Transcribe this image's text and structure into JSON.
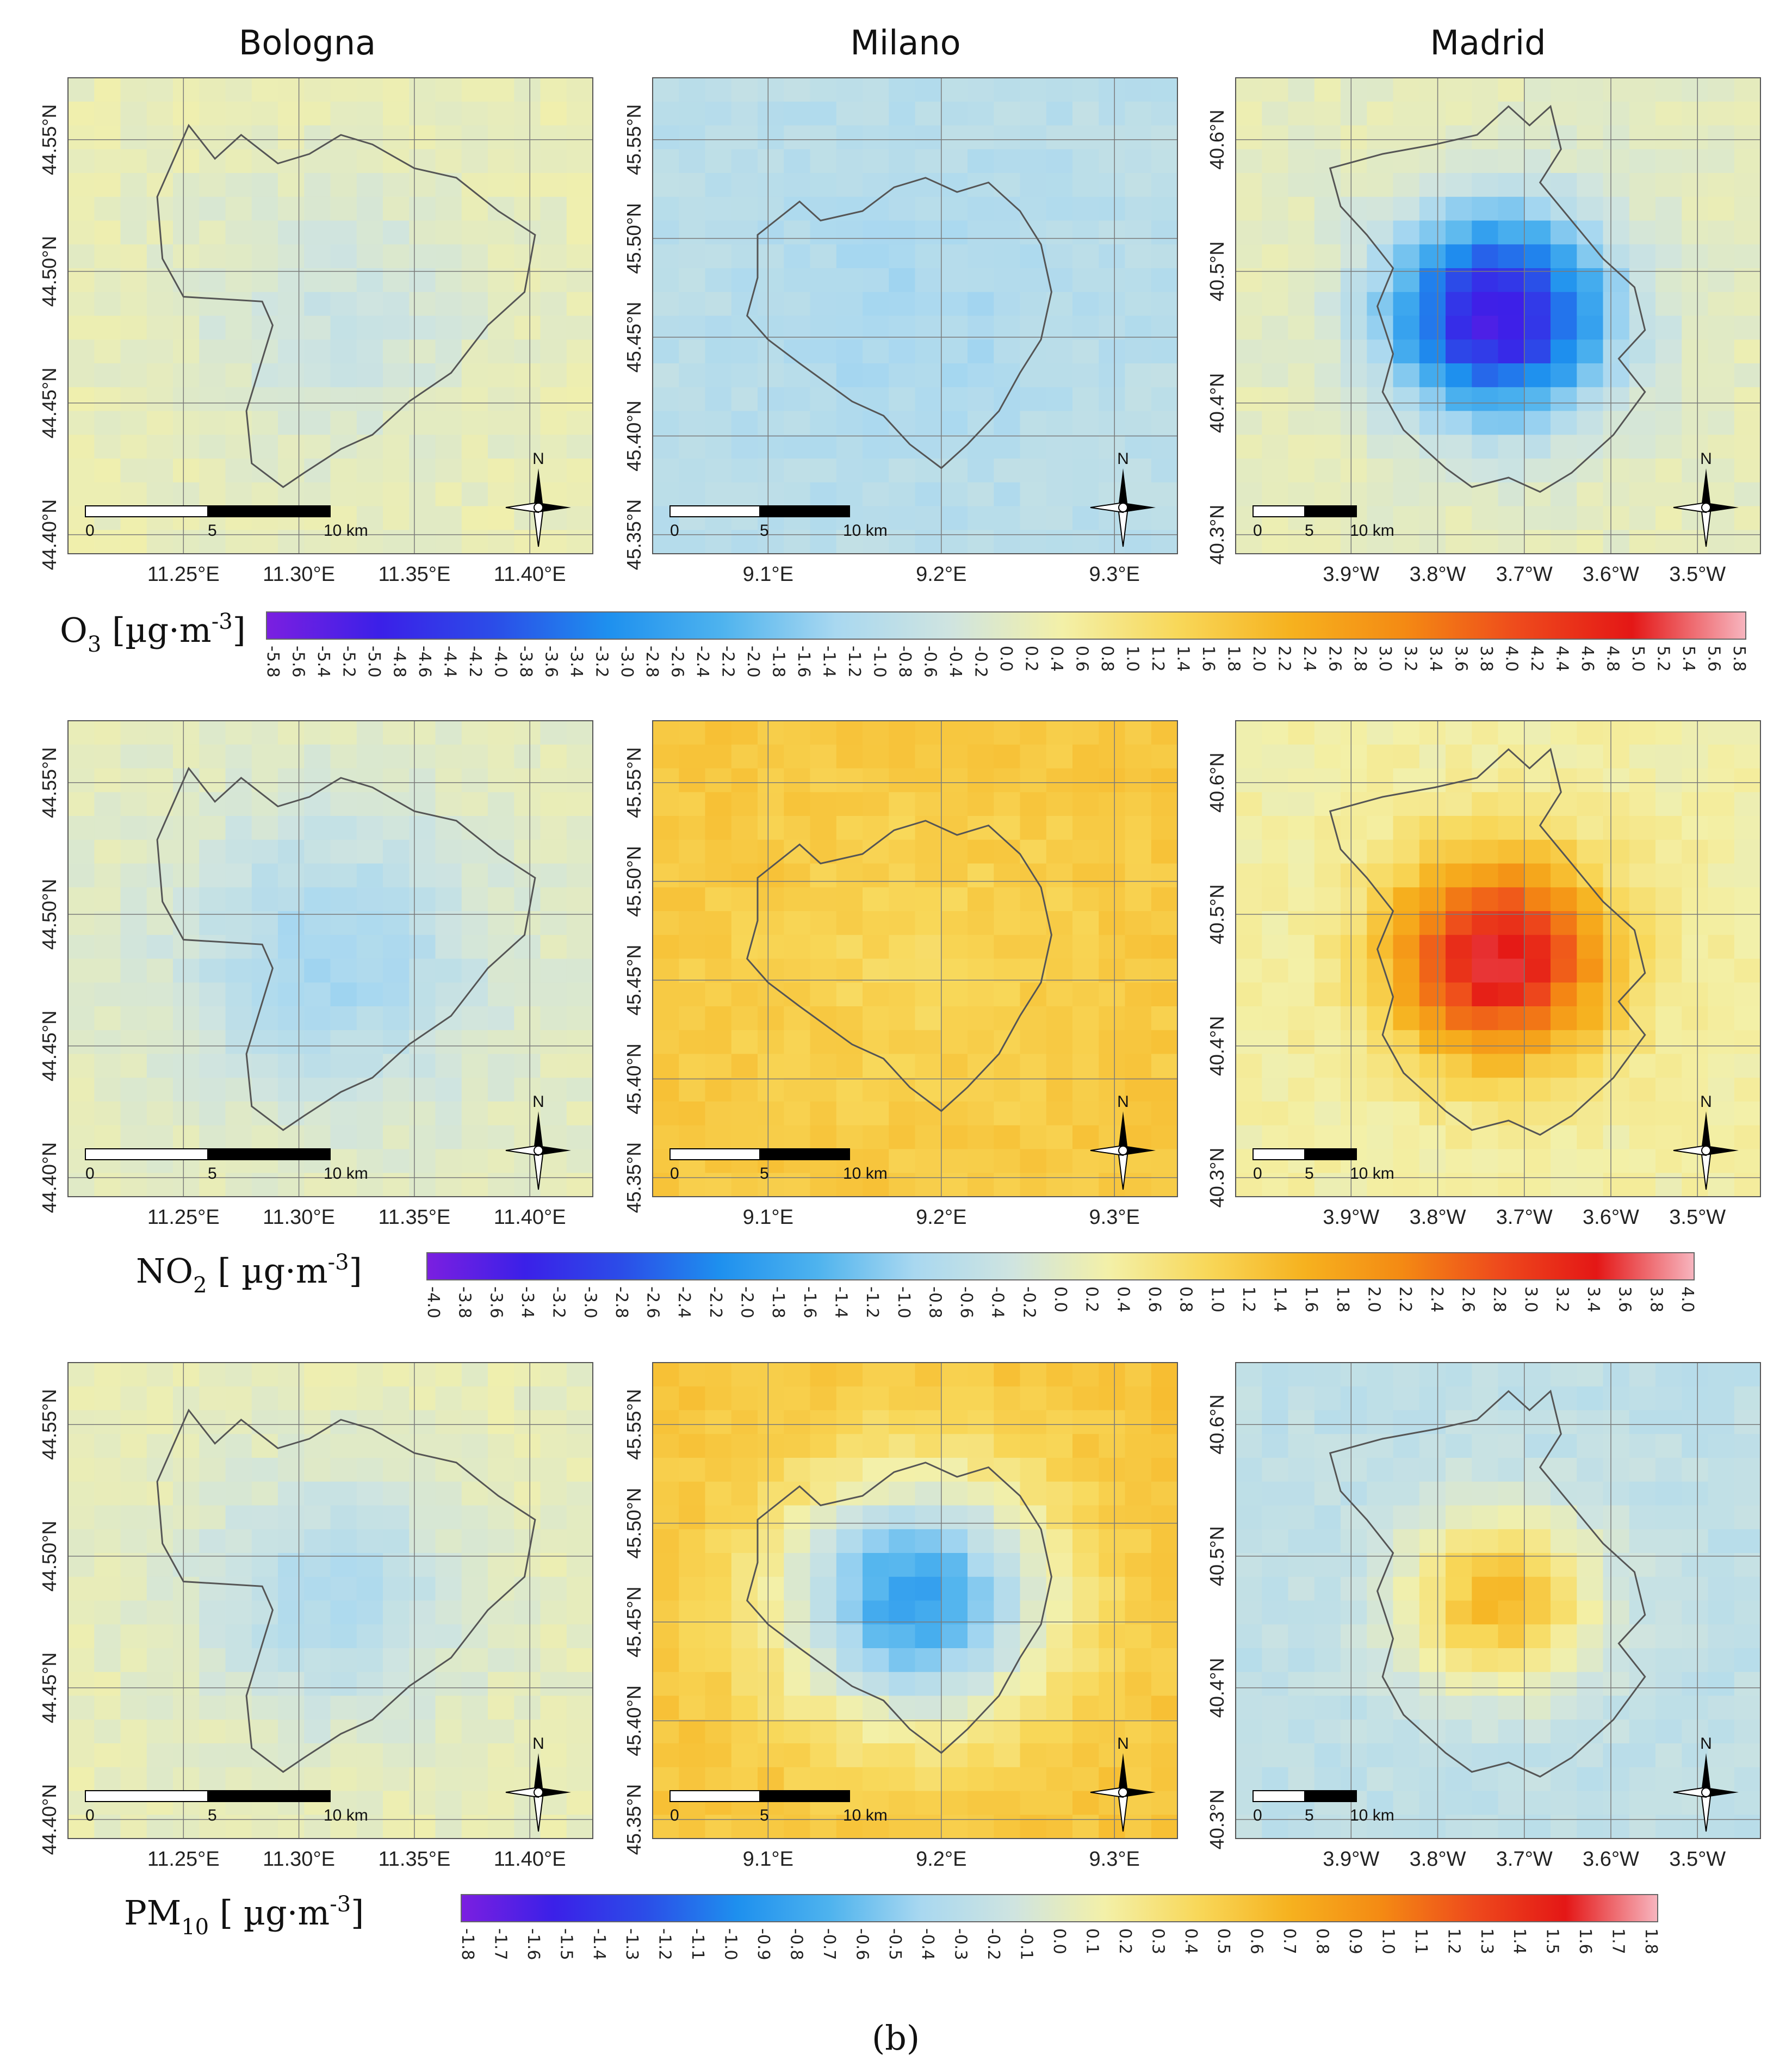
{
  "cities": [
    {
      "name": "Bologna",
      "x_ticks": [
        "11.25°E",
        "11.30°E",
        "11.35°E",
        "11.40°E"
      ],
      "y_ticks": [
        "44.55°N",
        "44.50°N",
        "44.45°N",
        "44.40°N"
      ]
    },
    {
      "name": "Milano",
      "x_ticks": [
        "9.1°E",
        "9.2°E",
        "9.3°E"
      ],
      "y_ticks": [
        "45.55°N",
        "45.50°N",
        "45.45°N",
        "45.40°N",
        "45.35°N"
      ]
    },
    {
      "name": "Madrid",
      "x_ticks": [
        "3.9°W",
        "3.8°W",
        "3.7°W",
        "3.6°W",
        "3.5°W"
      ],
      "y_ticks": [
        "40.6°N",
        "40.5°N",
        "40.4°N",
        "40.3°N"
      ]
    }
  ],
  "scalebar": {
    "labels": [
      "0",
      "5",
      "10 km"
    ]
  },
  "north_arrow": {
    "label": "N"
  },
  "caption": "(b)",
  "colors": {
    "ramp": [
      "#7b1fe0",
      "#3b20e8",
      "#2b4de8",
      "#1e90ee",
      "#4eb3ee",
      "#a9d8f0",
      "#cfe4e0",
      "#f3f0a8",
      "#f8d85a",
      "#f6b21f",
      "#f48a13",
      "#ee4a1c",
      "#e41716",
      "#f7b5bf"
    ]
  },
  "chart_data": [
    {
      "type": "heatmap",
      "pollutant": "O",
      "sub": "3",
      "unit": " [µg·m",
      "unit_exp": "-3",
      "unit_close": "]",
      "range": [
        -5.8,
        5.8
      ],
      "ticks": [
        "-5.8",
        "-5.6",
        "-5.4",
        "-5.2",
        "-5.0",
        "-4.8",
        "-4.6",
        "-4.4",
        "-4.2",
        "-4.0",
        "-3.8",
        "-3.6",
        "-3.4",
        "-3.2",
        "-3.0",
        "-2.8",
        "-2.6",
        "-2.4",
        "-2.2",
        "-2.0",
        "-1.8",
        "-1.6",
        "-1.4",
        "-1.2",
        "-1.0",
        "-0.8",
        "-0.6",
        "-0.4",
        "-0.2",
        "0.0",
        "0.2",
        "0.4",
        "0.6",
        "0.8",
        "1.0",
        "1.2",
        "1.4",
        "1.6",
        "1.8",
        "2.0",
        "2.2",
        "2.4",
        "2.6",
        "2.8",
        "3.0",
        "3.2",
        "3.4",
        "3.6",
        "3.8",
        "4.0",
        "4.2",
        "4.4",
        "4.6",
        "4.8",
        "5.0",
        "5.2",
        "5.4",
        "5.6",
        "5.8"
      ],
      "maps": {
        "Bologna": {
          "base": 0.2,
          "center": -0.5,
          "spread": 0.35
        },
        "Milano": {
          "base": -0.9,
          "center": -1.2,
          "spread": 0.4
        },
        "Madrid": {
          "base": 0.1,
          "center": -5.0,
          "spread": 0.25
        }
      }
    },
    {
      "type": "heatmap",
      "pollutant": "NO",
      "sub": "2",
      "unit": " [ µg·m",
      "unit_exp": "-3",
      "unit_close": "]",
      "range": [
        -4.0,
        4.0
      ],
      "ticks": [
        "-4.0",
        "-3.8",
        "-3.6",
        "-3.4",
        "-3.2",
        "-3.0",
        "-2.8",
        "-2.6",
        "-2.4",
        "-2.2",
        "-2.0",
        "-1.8",
        "-1.6",
        "-1.4",
        "-1.2",
        "-1.0",
        "-0.8",
        "-0.6",
        "-0.4",
        "-0.2",
        "0.0",
        "0.2",
        "0.4",
        "0.6",
        "0.8",
        "1.0",
        "1.2",
        "1.4",
        "1.6",
        "1.8",
        "2.0",
        "2.2",
        "2.4",
        "2.6",
        "2.8",
        "3.0",
        "3.2",
        "3.4",
        "3.6",
        "3.8",
        "4.0"
      ],
      "maps": {
        "Bologna": {
          "base": 0.05,
          "center": -0.9,
          "spread": 0.35
        },
        "Milano": {
          "base": 1.2,
          "center": 0.9,
          "spread": 0.4
        },
        "Madrid": {
          "base": 0.3,
          "center": 3.4,
          "spread": 0.25
        }
      }
    },
    {
      "type": "heatmap",
      "pollutant": "PM",
      "sub": "10",
      "unit": " [ µg·m",
      "unit_exp": "-3",
      "unit_close": "]",
      "range": [
        -1.8,
        1.8
      ],
      "ticks": [
        "-1.8",
        "-1.7",
        "-1.6",
        "-1.5",
        "-1.4",
        "-1.3",
        "-1.2",
        "-1.1",
        "-1.0",
        "-0.9",
        "-0.8",
        "-0.7",
        "-0.6",
        "-0.5",
        "-0.4",
        "-0.3",
        "-0.2",
        "-0.1",
        "0.0",
        "0.1",
        "0.2",
        "0.3",
        "0.4",
        "0.5",
        "0.6",
        "0.7",
        "0.8",
        "0.9",
        "1.0",
        "1.1",
        "1.2",
        "1.3",
        "1.4",
        "1.5",
        "1.6",
        "1.7",
        "1.8"
      ],
      "maps": {
        "Bologna": {
          "base": 0.05,
          "center": -0.35,
          "spread": 0.3
        },
        "Milano": {
          "base": 0.55,
          "center": -0.8,
          "spread": 0.3
        },
        "Madrid": {
          "base": -0.25,
          "center": 0.6,
          "spread": 0.22
        }
      }
    }
  ]
}
